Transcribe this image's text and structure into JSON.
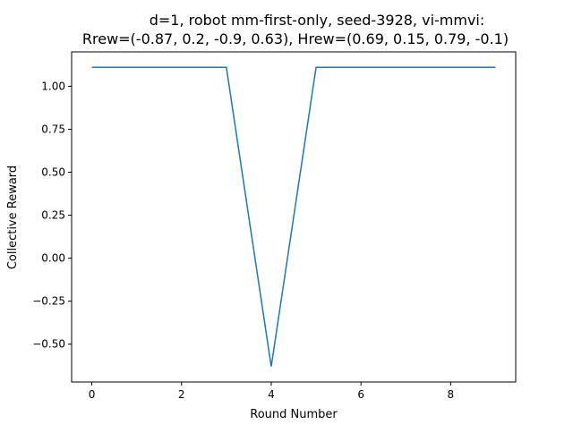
{
  "chart_data": {
    "type": "line",
    "title": [
      "d=1, robot mm-first-only, seed-3928, vi-mmvi:",
      "Rrew=(-0.87, 0.2, -0.9, 0.63), Hrew=(0.69, 0.15, 0.79, -0.1)"
    ],
    "xlabel": "Round Number",
    "ylabel": "Collective Reward",
    "xlim": [
      -0.45,
      9.45
    ],
    "ylim": [
      -0.72,
      1.2
    ],
    "xticks": [
      0,
      2,
      4,
      6,
      8
    ],
    "xtick_labels": [
      "0",
      "2",
      "4",
      "6",
      "8"
    ],
    "yticks": [
      -0.5,
      -0.25,
      0.0,
      0.25,
      0.5,
      0.75,
      1.0
    ],
    "ytick_labels": [
      "−0.50",
      "−0.25",
      "0.00",
      "0.25",
      "0.50",
      "0.75",
      "1.00"
    ],
    "grid": false,
    "legend": "none",
    "series": [
      {
        "color": "#1f77b4",
        "x": [
          0,
          1,
          2,
          3,
          4,
          5,
          6,
          7,
          8,
          9
        ],
        "y": [
          1.11,
          1.11,
          1.11,
          1.11,
          -0.63,
          1.11,
          1.11,
          1.11,
          1.11,
          1.11
        ]
      }
    ]
  }
}
